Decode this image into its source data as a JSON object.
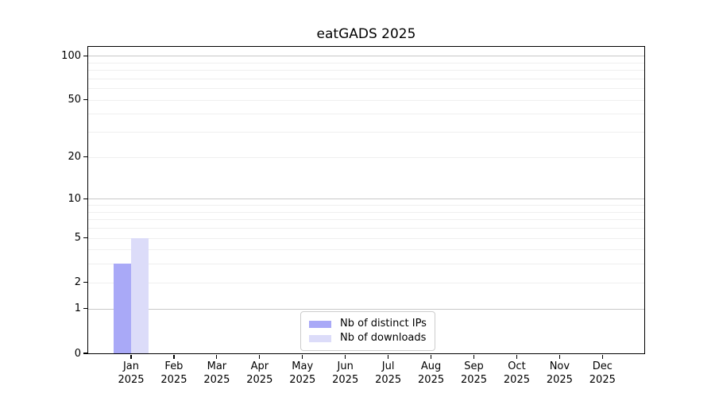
{
  "chart_data": {
    "type": "bar",
    "title": "eatGADS 2025",
    "categories": [
      "Jan",
      "Feb",
      "Mar",
      "Apr",
      "May",
      "Jun",
      "Jul",
      "Aug",
      "Sep",
      "Oct",
      "Nov",
      "Dec"
    ],
    "category_year": "2025",
    "series": [
      {
        "name": "Nb of distinct IPs",
        "color": "#a9a9f7",
        "values": [
          3,
          0,
          0,
          0,
          0,
          0,
          0,
          0,
          0,
          0,
          0,
          0
        ]
      },
      {
        "name": "Nb of downloads",
        "color": "#dcdcf9",
        "values": [
          5,
          0,
          0,
          0,
          0,
          0,
          0,
          0,
          0,
          0,
          0,
          0
        ]
      }
    ],
    "yscale": "log1p",
    "ylim": [
      0,
      115
    ],
    "y_ticks": [
      0,
      1,
      2,
      5,
      10,
      20,
      50,
      100
    ],
    "y_major_gridlines": [
      1,
      10,
      100
    ],
    "y_minor_gridlines": [
      2,
      3,
      4,
      5,
      6,
      7,
      8,
      9,
      20,
      30,
      40,
      50,
      60,
      70,
      80,
      90
    ],
    "grid": "horizontal",
    "legend_position": "bottom-center",
    "colors": {
      "background": "#ffffff",
      "spine": "#000000",
      "text": "#000000",
      "major_grid": "#c8c8c8",
      "minor_grid": "#efefef",
      "bar_distinct_ips": "#a9a9f7",
      "bar_downloads": "#dcdcf9"
    }
  }
}
